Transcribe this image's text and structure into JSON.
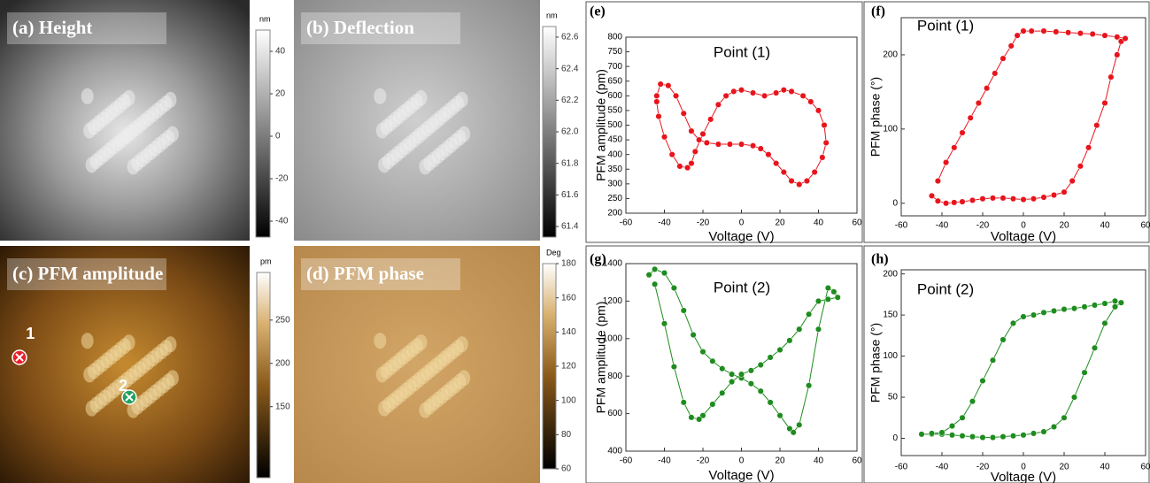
{
  "chart_data": [
    {
      "type": "image",
      "title": "(a) Height",
      "colorbar_label": "nm",
      "clim": [
        -47.5,
        50
      ],
      "cticks": [
        40,
        20,
        0,
        -20,
        -40
      ],
      "cmap": [
        "#000000",
        "#ffffff"
      ]
    },
    {
      "type": "image",
      "title": "(b) Deflection",
      "colorbar_label": "nm",
      "clim": [
        61.333,
        62.667
      ],
      "cticks": [
        62.6,
        62.4,
        62.2,
        {
          "value": 62,
          "label": "62.0"
        },
        61.8,
        61.6,
        61.4
      ],
      "cmap": [
        "#000000",
        "#ffffff"
      ]
    },
    {
      "type": "image",
      "title": "(c) PFM amplitude",
      "colorbar_label": "pm",
      "clim": [
        68,
        305
      ],
      "cticks": [
        250,
        200,
        150
      ],
      "cmap": [
        "#000000",
        "#ffffff"
      ],
      "markers": [
        {
          "label": "1",
          "color": "#e8202a"
        },
        {
          "label": "2",
          "color": "#22a060"
        }
      ]
    },
    {
      "type": "image",
      "title": "(d) PFM phase",
      "colorbar_label": "Deg",
      "clim": [
        60,
        180
      ],
      "cticks": [
        180,
        160,
        140,
        120,
        100,
        80,
        60
      ],
      "cmap": [
        "#000000",
        "#ffffff"
      ]
    },
    {
      "type": "scatter",
      "panel": "(e)",
      "annotation": "Point (1)",
      "xlabel": "Voltage (V)",
      "ylabel": "PFM amplitude (pm)",
      "xlim": [
        -60,
        60
      ],
      "xticks": [
        -60,
        -40,
        -20,
        0,
        20,
        40,
        60
      ],
      "ylim": [
        200,
        800
      ],
      "yticks": [
        200,
        250,
        300,
        350,
        400,
        450,
        500,
        550,
        600,
        650,
        700,
        750,
        800
      ],
      "series": [
        {
          "color": "#e8141c",
          "x": [
            -44,
            -42,
            -38,
            -34,
            -30,
            -26,
            -22,
            -18,
            -12,
            -6,
            0,
            6,
            10,
            14,
            18,
            22,
            26,
            30,
            34,
            38,
            42,
            44,
            43,
            40,
            36,
            32,
            26,
            22,
            18,
            12,
            6,
            0,
            -4,
            -8,
            -12,
            -16,
            -20,
            -24,
            -26,
            -28,
            -32,
            -36,
            -40,
            -43,
            -44
          ],
          "values": [
            600,
            640,
            635,
            600,
            540,
            480,
            450,
            440,
            435,
            435,
            435,
            430,
            420,
            400,
            370,
            340,
            310,
            298,
            310,
            340,
            390,
            440,
            500,
            550,
            580,
            600,
            615,
            620,
            610,
            600,
            610,
            620,
            615,
            600,
            570,
            520,
            470,
            410,
            370,
            355,
            360,
            400,
            460,
            530,
            580
          ]
        }
      ]
    },
    {
      "type": "scatter",
      "panel": "(f)",
      "annotation": "Point (1)",
      "xlabel": "Voltage (V)",
      "ylabel": "PFM phase (°)",
      "xlim": [
        -60,
        60
      ],
      "xticks": [
        -60,
        -40,
        -20,
        0,
        20,
        40,
        60
      ],
      "ylim": [
        -17,
        250
      ],
      "yticks": [
        0,
        100,
        200
      ],
      "series": [
        {
          "color": "#e8141c",
          "x": [
            -45,
            -42,
            -38,
            -34,
            -30,
            -25,
            -20,
            -15,
            -10,
            -5,
            0,
            5,
            10,
            15,
            20,
            24,
            28,
            32,
            36,
            40,
            43,
            46,
            48,
            50,
            46,
            40,
            34,
            28,
            22,
            16,
            10,
            4,
            0,
            -3,
            -6,
            -10,
            -14,
            -18,
            -22,
            -26,
            -30,
            -34,
            -38,
            -42
          ],
          "values": [
            10,
            3,
            0,
            1,
            2,
            4,
            6,
            7,
            7,
            6,
            5,
            6,
            8,
            11,
            15,
            30,
            50,
            75,
            105,
            135,
            170,
            200,
            218,
            222,
            224,
            226,
            228,
            229,
            230,
            231,
            232,
            232,
            232,
            226,
            212,
            195,
            175,
            155,
            135,
            115,
            95,
            75,
            55,
            30
          ]
        }
      ]
    },
    {
      "type": "scatter",
      "panel": "(g)",
      "annotation": "Point (2)",
      "xlabel": "Voltage (V)",
      "ylabel": "PFM amplitude (pm)",
      "xlim": [
        -60,
        60
      ],
      "xticks": [
        -60,
        -40,
        -20,
        0,
        20,
        40,
        60
      ],
      "ylim": [
        400,
        1400
      ],
      "yticks": [
        400,
        600,
        800,
        1000,
        1200,
        1400
      ],
      "series": [
        {
          "color": "#1e8c1e",
          "x": [
            -48,
            -45,
            -40,
            -35,
            -30,
            -25,
            -20,
            -15,
            -10,
            -5,
            0,
            5,
            10,
            15,
            20,
            25,
            27,
            30,
            35,
            40,
            45,
            48,
            50,
            45,
            40,
            35,
            30,
            25,
            20,
            15,
            10,
            5,
            0,
            -5,
            -10,
            -15,
            -20,
            -22,
            -26,
            -30,
            -35,
            -40,
            -45
          ],
          "values": [
            1340,
            1370,
            1350,
            1270,
            1150,
            1020,
            930,
            880,
            840,
            810,
            790,
            760,
            720,
            660,
            590,
            520,
            500,
            540,
            750,
            1050,
            1270,
            1250,
            1220,
            1210,
            1200,
            1130,
            1050,
            990,
            940,
            900,
            860,
            830,
            810,
            770,
            710,
            650,
            590,
            570,
            580,
            660,
            850,
            1080,
            1290
          ]
        }
      ]
    },
    {
      "type": "scatter",
      "panel": "(h)",
      "annotation": "Point (2)",
      "xlabel": "Voltage (V)",
      "ylabel": "PFM phase (°)",
      "xlim": [
        -60,
        60
      ],
      "xticks": [
        -60,
        -40,
        -20,
        0,
        20,
        40,
        60
      ],
      "ylim": [
        -21,
        205
      ],
      "yticks": [
        0,
        50,
        100,
        150,
        200
      ],
      "series": [
        {
          "color": "#1e8c1e",
          "x": [
            -50,
            -45,
            -40,
            -35,
            -30,
            -25,
            -20,
            -15,
            -10,
            -5,
            0,
            5,
            10,
            15,
            20,
            25,
            30,
            35,
            40,
            45,
            48,
            45,
            40,
            35,
            30,
            25,
            20,
            15,
            10,
            5,
            0,
            -5,
            -10,
            -15,
            -20,
            -25,
            -30,
            -35,
            -40,
            -45
          ],
          "values": [
            5,
            5,
            5,
            4,
            3,
            2,
            1,
            1,
            2,
            3,
            4,
            6,
            8,
            14,
            25,
            50,
            80,
            110,
            140,
            160,
            165,
            167,
            164,
            162,
            160,
            158,
            157,
            155,
            153,
            150,
            148,
            140,
            120,
            95,
            70,
            45,
            25,
            15,
            7,
            6
          ]
        }
      ]
    }
  ]
}
